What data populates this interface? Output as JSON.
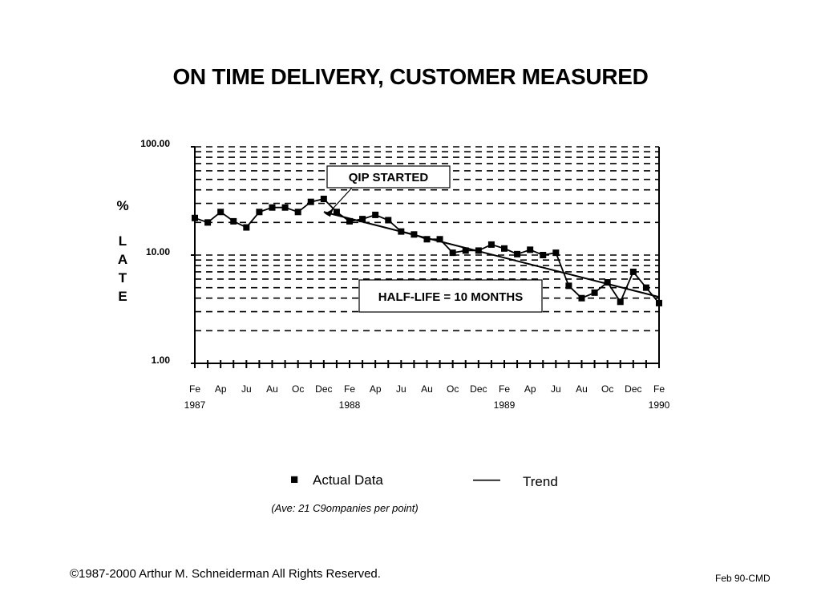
{
  "chart_data": {
    "type": "line",
    "title": "ON TIME DELIVERY, CUSTOMER MEASURED",
    "ylabel": "% LATE",
    "yscale": "log",
    "ylim": [
      1,
      100
    ],
    "y_ticks": [
      "100.00",
      "10.00",
      "1.00"
    ],
    "grid": "horizontal-dashed",
    "x_tick_labels": [
      "Fe",
      "Ap",
      "Ju",
      "Au",
      "Oc",
      "Dec",
      "Fe",
      "Ap",
      "Ju",
      "Au",
      "Oc",
      "Dec",
      "Fe",
      "Ap",
      "Ju",
      "Au",
      "Oc",
      "Dec",
      "Fe"
    ],
    "x_year_labels": [
      "1987",
      "1988",
      "1989",
      "1990"
    ],
    "x": [
      "1987-02",
      "1987-03",
      "1987-04",
      "1987-05",
      "1987-06",
      "1987-07",
      "1987-08",
      "1987-09",
      "1987-10",
      "1987-11",
      "1987-12",
      "1988-01",
      "1988-02",
      "1988-03",
      "1988-04",
      "1988-05",
      "1988-06",
      "1988-07",
      "1988-08",
      "1988-09",
      "1988-10",
      "1988-11",
      "1988-12",
      "1989-01",
      "1989-02",
      "1989-03",
      "1989-04",
      "1989-05",
      "1989-06",
      "1989-07",
      "1989-08",
      "1989-09",
      "1989-10",
      "1989-11",
      "1989-12",
      "1990-01",
      "1990-02"
    ],
    "series": [
      {
        "name": "Actual Data",
        "marker": "square",
        "values": [
          22,
          20,
          25,
          20.5,
          18,
          25,
          27.5,
          27.5,
          25,
          31,
          33,
          25,
          20.5,
          21.5,
          23.5,
          21,
          16.5,
          15.5,
          14,
          14,
          10.5,
          11,
          11,
          12.5,
          11.5,
          10.2,
          11.2,
          10,
          10.5,
          5.2,
          4,
          4.5,
          5.6,
          3.7,
          7,
          5,
          3.6
        ]
      },
      {
        "name": "Trend",
        "marker": "none",
        "x": [
          "1987-12",
          "1990-02"
        ],
        "values": [
          25,
          4.1
        ]
      }
    ],
    "annotations": [
      {
        "text": "QIP STARTED",
        "points_to": "1987-12"
      },
      {
        "text": "HALF-LIFE = 10 MONTHS"
      }
    ],
    "legend": {
      "placement": "bottom",
      "items": [
        "Actual Data",
        "Trend"
      ]
    },
    "note": "(Ave: 21 C9ompanies per point)"
  },
  "footer": {
    "copyright": "©1987-2000 Arthur M. Schneiderman  All Rights Reserved.",
    "code": "Feb 90-CMD"
  }
}
